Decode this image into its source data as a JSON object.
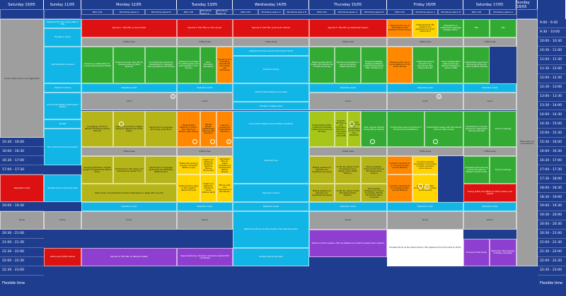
{
  "days": [
    "Saturday 10/05",
    "Sunday 11/05",
    "Monday 12/05",
    "Tuesday 13/05",
    "Wednesday 14/05",
    "Thursday 15/05",
    "Friday 16/05",
    "Saturday 17/05",
    "Sunday 18/05"
  ],
  "rooms": [
    "Main hall",
    "Workshop space A",
    "Workshop space B"
  ],
  "times": [
    "9:00 - 9:30",
    "9:30 - 10:00",
    "10:00 - 10:30",
    "10:30 - 11:00",
    "11:00 - 11:30",
    "11:30 - 12:00",
    "12:00 - 12:30",
    "12:30 - 13:00",
    "13:00 - 13:30",
    "13:30 - 14:00",
    "14:00 - 14:30",
    "14:30 - 15:00",
    "15:00 - 15:30",
    "15:30 - 16:00",
    "16:00 - 16:30",
    "16:30 - 17:00",
    "17:00 - 17:30",
    "17:30 - 18:00",
    "18:00 - 18:30",
    "18:30 - 19:00",
    "19:00 - 19:30",
    "19:30 - 20:00",
    "20:00 - 20:30",
    "20:30 - 21:00",
    "21:00 - 21:30",
    "21:30 - 22:00",
    "22:00 - 22:30",
    "22:30 - 23:00"
  ],
  "footer": "Flexible time",
  "colors": {
    "red": "#dd1111",
    "green": "#33aa33",
    "lime": "#a8c61a",
    "olive": "#b5b51a",
    "orange": "#ff8800",
    "yellow": "#ffd400",
    "cyan": "#11b5e6",
    "lightcyan": "#3fc8ee",
    "grey": "#9e9e9e",
    "purple": "#8f3fd0",
    "white": "#ffffff"
  },
  "sessions": {
    "sat_arrive": "Arrival, hotel check-in and registration",
    "sun_depart": "Departure from the venue (Walk or ETA)",
    "sun_transfer_venue": "Transfer to Venue",
    "sun_visit": "Visit the Botanic Gardens",
    "sun_transfer_lecture": "Transfer to lecture",
    "sun_lunch": "Lunch at the Ateliers Ockkuvarja in Vestfors",
    "sun_transfer": "Transfer",
    "sun_tour": "Tour of the Scandinavian Gardens",
    "sun_transfer_hotel": "Transfer back to the school hotel",
    "sun_dinner": "Dinner",
    "sun_games": "Get-to-know (TELS) Games",
    "sat_registration": "Registration desk",
    "sat_dinner": "Dinner",
    "mon_keynote": "Keynote 1: Title TBA, by Sanne Diller",
    "mon_coffee": "Coffee break",
    "mon_a1": "Humans in collaboration for inclusive learning (Jane Miller)",
    "mon_a2": "Access to Europe: How VR can Visualise Learning (Mark Wojcicki)",
    "mon_a3": "Current Trends and Future Possibilities for Intelligent Tutoring Systems (Tim Dafra)",
    "mon_relax": "Relaxation break",
    "mon_lunch": "Lunch",
    "mon_b1": "Leveraging AI Tools for Research Excellence (Mona Perkova)",
    "mon_b2": "Designing workshop: Insights Design for Researchers (Ruth Hegar)",
    "mon_b3": "Introduction to Language Technology (Lidia Korn)",
    "mon_c1": "Designing Workshop: Insights Design for Researchers (Bianca Kiani)",
    "mon_c2": "Introduction to TEL design and development (Kasper Yuri)",
    "mon_c3": "Introduction to Language Technology and Modelling (Birgit Sander)",
    "mon_radio": "Radio backs: All participants introduce themselves on stage with one slide",
    "mon_relax2": "Relaxation break",
    "mon_dinner": "Dinner",
    "mon_keynote2": "Keynote 2: Title TBA, by Katherine Webb",
    "tue_keynote": "Keynote 3: Title TBA, by Timo de Jaer",
    "tue_coffee": "Coffee break",
    "tue_a1": "Theories and models for metacognition and self-regulation (Timo de Jaer)",
    "tue_a2": "XR in Education (Ilse Bader)",
    "tue_a3": "Designing and evaluating educational technology (Ida Stemberg)",
    "tue_relax": "Relaxation break",
    "tue_lunch": "Lunch",
    "tue_b1": "Design Based Research in Action: from Theory to Practice (Ben Kassin)",
    "tue_b2": "The Pay Model: Collaborative Learning (Mia Oksanen)",
    "tue_b3": "Learning Analytics at Scale (Beata Wollman)",
    "tue_c1": "Multimodal learning analytics workshop (Nathan Cope)",
    "tue_c2": "Health and wellbeing: Research Methods (Bianca Fernandez)",
    "tue_c3": "SLM-based TELs for digital competences development (Emilia Nowak)",
    "tue_c4": "Self-presenting ideas in TEL research (Wanda Ferreira)",
    "tue_c5": "Health and wellbeing: Children's Voices (Alfonso Reid)",
    "tue_c6": "Ethical, safe and responsible AI (Kai Banari)",
    "tue_relax2": "Relaxation break",
    "tue_dinner": "Dinner",
    "tue_speed": "Speed mentoring: All senior instructors meet all PhD candidates",
    "wed_keynote": "Keynote 4: Title TBA, by Bruce M. Abrams",
    "wed_coffee": "Coffee break",
    "wed_depart": "Departure from the venue to the hotel at 10:45",
    "wed_transfer": "Transfer to Ulsoia",
    "wed_visit": "Visit the Ulsoia Museum and Ulvoia",
    "wed_transfer2": "Transfer to village Ulvoia",
    "wed_lunch": "Lunch at the village Ulvoia at Eastern Guesthus",
    "wed_city": "Ulvoia City Tour",
    "wed_free": "Free time in Ulsoia",
    "wed_relax": "Relaxation break",
    "wed_networking": "Networking Dinner at Ulsoia Harbour Hall (standing setup)",
    "wed_transfer_hotel": "Transfer back to the hotel",
    "thu_keynote": "Keynote 5: Title TBA, by Aleksander Hussen",
    "thu_coffee": "Coffee break",
    "thu_a1": "Mapping Instructional Design with Affordances of LLMs (Liza Moss)",
    "thu_a2": "Skill-first assumptions in Learning Analytics (Dieter Simmons)",
    "thu_a3": "Escape the Reality: Designing Tabletop Digital Escape Rooms (Mark Hamiltonne)",
    "thu_relax": "Relaxation break",
    "thu_lunch": "Lunch",
    "thu_b1": "Online Multimodality: Crafting the Playable Lifelike Learning (Anna Rhodes)",
    "thu_b2": "Scientific Text Mining and Information Extraction using Deep Learning (Lars Dahl)",
    "thu_b3": "Learning Analytics as an Orchestration Tool for CSCL (Vera Zukowski)",
    "thu_b4": "CSCL: Special Interest Groups (Mona Pereira)",
    "thu_c1": "Making questions to help test your hypothesis (Jo Lopez)",
    "thu_c2": "Tic-Tac-Toe Design Fiction Storytelling: Using Design Fiction (Petra Ekblom)",
    "thu_c3": "Exploring Reality: Exploring XR Tutoring Techniques (Rosa Carmin)",
    "thu_c4": "Making questions to help test your hypothesis (Jo Lopez)",
    "thu_c5": "Tic-Tac-Toe Design Fiction Storytelling (Petra Ekblom)",
    "thu_c6": "Technological Pedagogical Content Knowledge (TPACK) frameworks (Nora Lindqvist)",
    "thu_relax2": "Relaxation break",
    "thu_dinner": "Dinner",
    "thu_poster": "Poster and Demo session: PhD candidates are invited to present their research",
    "fri_a0": "Measuring the use of Preexisting Social Networks (Omar Farouk)",
    "fri_a0b": "Challenging the TEL research and assessment program (Marta Ryn)",
    "fri_a0c": "Explorations in intellectual knowledge (Dragana Mihic)",
    "fri_coffee": "Coffee break",
    "fri_a1": "Measuring the use of Social Networks in TEL (Omar Farouk)",
    "fri_a2": "Capturing Learning Dynamics via Educational Data (Helena Brandt)",
    "fri_a3": "Online Collaborative Learning through Artificial Intelligence (Olivia Arnett)",
    "fri_relax": "Relaxation break",
    "fri_lunch": "Lunch",
    "fri_b1": "Constructing Learning Theories in Practice (Lena Gustafsson)",
    "fri_b2": "Collaborative Design with Educational Partners (Ilaria Costa)",
    "fri_c1": "Academic Capacity for an Inclusive Society (Annaly Mikkola)",
    "fri_c2": "Computer-assisted knowledge communities in higher education (Lucia Sevran)",
    "fri_c3": "Academic Capacity for an Inclusive Society (Annaly Mikkola)",
    "fri_c4": "Computer-assisted knowledge communities (Lucia Sevran)",
    "fri_relax2": "Relaxation break",
    "fri_dinner": "Dinner",
    "fri_farewell": "Farewell Dinner at the Ulsoia Harbour Hall (departure from the hotel at 18:45)",
    "sat_keynote_tba": "TBA",
    "sat_coffee": "Coffee break",
    "sat_tba2": "TBA",
    "sat_b1": "Collaborative Learning in Technology Enhanced Learning (Mirja Kantola)",
    "sat_relax": "Relaxation break",
    "sat_lunch": "Lunch",
    "sat_b2": "Introduction to campus spaces for collaborative learning (Ida Fjell)",
    "sat_b3": "TBA",
    "sat_b4": "Time for readings",
    "sat_c1": "Unwrapping the Learning Journey: Educational Research (Greta Linde)",
    "sat_c2": "Time for readings",
    "sat_closing": "Closing (TELS) and (PELS) to (TELS): Session and Awards",
    "sat_relax2": "Relaxation break",
    "sat_dinner2": "Dinner",
    "sat_excursion": "Excursion Hotel Ulsoia",
    "sat_speed": "Speed jam: Board games, activities, AR games",
    "sun18_leave": "Hotel check-out and departure"
  }
}
